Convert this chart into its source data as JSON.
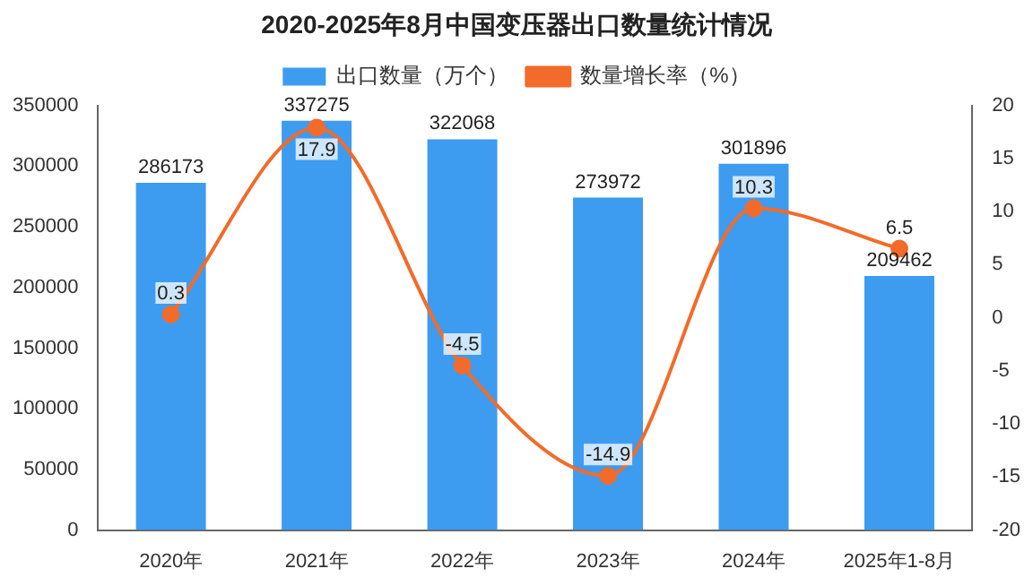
{
  "chart_data": {
    "type": "bar",
    "title": "2020-2025年8月中国变压器出口数量统计情况",
    "categories": [
      "2020年",
      "2021年",
      "2022年",
      "2023年",
      "2024年",
      "2025年1-8月"
    ],
    "series": [
      {
        "name": "出口数量（万个）",
        "color": "#3d9cf0",
        "values": [
          286173,
          337275,
          322068,
          273972,
          301896,
          209462
        ]
      },
      {
        "name": "数量增长率（%）",
        "type": "line",
        "axis": "y2",
        "color": "#f26b2a",
        "values": [
          0.3,
          17.9,
          -4.5,
          -14.9,
          10.3,
          6.5
        ]
      }
    ],
    "ylim": [
      0,
      350000
    ],
    "yticks": [
      0,
      50000,
      100000,
      150000,
      200000,
      250000,
      300000,
      350000
    ],
    "y2lim": [
      -20,
      20
    ],
    "y2ticks": [
      -20,
      -15,
      -10,
      -5,
      0,
      5,
      10,
      15,
      20
    ],
    "data_labels": true,
    "legend": "top",
    "grid": false,
    "marker": "circle",
    "line_style": "solid"
  }
}
